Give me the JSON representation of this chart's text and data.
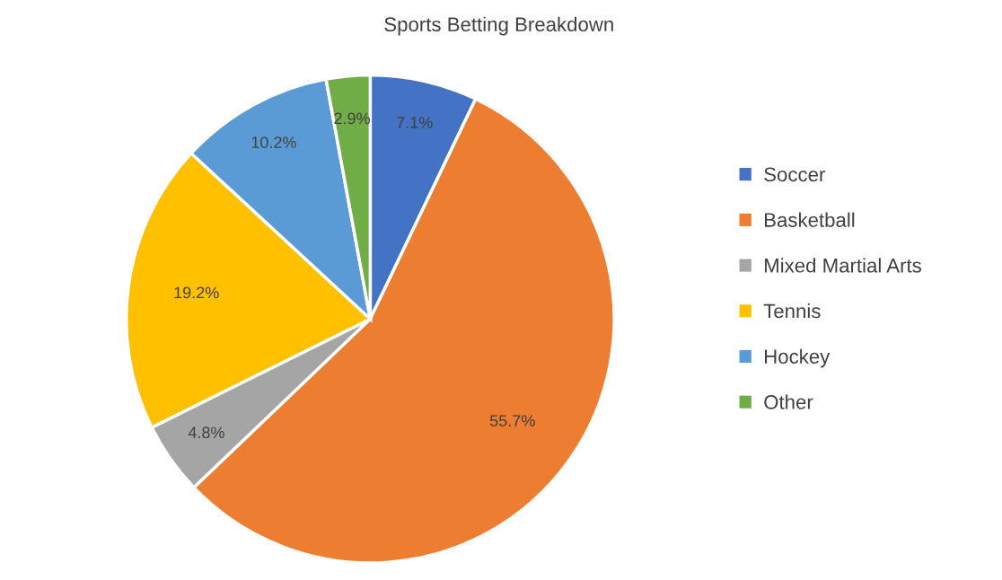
{
  "chart_data": {
    "type": "pie",
    "title": "Sports Betting Breakdown",
    "categories": [
      "Soccer",
      "Basketball",
      "Mixed Martial Arts",
      "Tennis",
      "Hockey",
      "Other"
    ],
    "values": [
      7.1,
      55.7,
      4.8,
      19.2,
      10.2,
      2.9
    ],
    "colors": [
      "#4472c4",
      "#ed7d31",
      "#a5a5a5",
      "#ffc000",
      "#5b9bd5",
      "#70ad47"
    ],
    "value_labels": [
      "7.1%",
      "55.7%",
      "4.8%",
      "19.2%",
      "10.2%",
      "2.9%"
    ],
    "legend": "right"
  }
}
